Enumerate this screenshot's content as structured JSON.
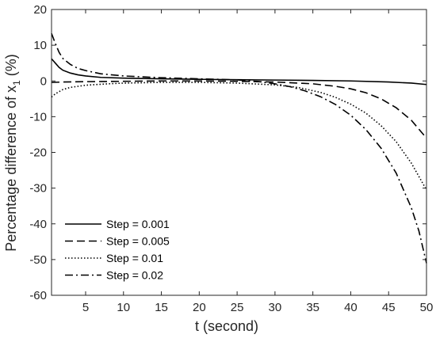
{
  "chart_data": {
    "type": "line",
    "xlabel": "t (second)",
    "ylabel": "Percentage difference of x",
    "ylabel_subscript": "1",
    "ylabel_unit": "(%)",
    "xlim": [
      0.5,
      50
    ],
    "ylim": [
      -60,
      20
    ],
    "xticks": [
      5,
      10,
      15,
      20,
      25,
      30,
      35,
      40,
      45,
      50
    ],
    "yticks": [
      20,
      10,
      0,
      -10,
      -20,
      -30,
      -40,
      -50,
      -60
    ],
    "grid": false,
    "legend_position": "bottom-left",
    "series": [
      {
        "name": "Step = 0.001",
        "dash": "solid",
        "color": "#000000",
        "points": [
          [
            0.5,
            6.2
          ],
          [
            1,
            5.0
          ],
          [
            1.5,
            3.8
          ],
          [
            2,
            3.0
          ],
          [
            3,
            2.2
          ],
          [
            4,
            1.7
          ],
          [
            5,
            1.4
          ],
          [
            7,
            1.0
          ],
          [
            10,
            0.8
          ],
          [
            15,
            0.6
          ],
          [
            20,
            0.45
          ],
          [
            25,
            0.35
          ],
          [
            30,
            0.25
          ],
          [
            35,
            0.15
          ],
          [
            40,
            0.0
          ],
          [
            45,
            -0.3
          ],
          [
            48,
            -0.6
          ],
          [
            50,
            -1.0
          ]
        ]
      },
      {
        "name": "Step = 0.005",
        "dash": "dashed",
        "color": "#000000",
        "points": [
          [
            0.5,
            -0.4
          ],
          [
            2,
            -0.3
          ],
          [
            5,
            -0.2
          ],
          [
            10,
            -0.1
          ],
          [
            15,
            0.0
          ],
          [
            20,
            0.0
          ],
          [
            25,
            -0.1
          ],
          [
            30,
            -0.3
          ],
          [
            35,
            -0.8
          ],
          [
            38,
            -1.5
          ],
          [
            40,
            -2.2
          ],
          [
            42,
            -3.3
          ],
          [
            44,
            -5.0
          ],
          [
            46,
            -7.5
          ],
          [
            48,
            -11.0
          ],
          [
            50,
            -16.0
          ]
        ]
      },
      {
        "name": "Step = 0.01",
        "dash": "dotted",
        "color": "#000000",
        "points": [
          [
            0.5,
            -4.5
          ],
          [
            1,
            -3.6
          ],
          [
            2,
            -2.4
          ],
          [
            3,
            -1.8
          ],
          [
            5,
            -1.2
          ],
          [
            8,
            -0.8
          ],
          [
            10,
            -0.6
          ],
          [
            15,
            -0.4
          ],
          [
            20,
            -0.4
          ],
          [
            25,
            -0.6
          ],
          [
            30,
            -1.1
          ],
          [
            33,
            -1.8
          ],
          [
            36,
            -3.2
          ],
          [
            38,
            -4.6
          ],
          [
            40,
            -6.5
          ],
          [
            42,
            -9.0
          ],
          [
            44,
            -12.5
          ],
          [
            46,
            -17.0
          ],
          [
            48,
            -23.0
          ],
          [
            50,
            -30.5
          ]
        ]
      },
      {
        "name": "Step = 0.02",
        "dash": "dashdot",
        "color": "#000000",
        "points": [
          [
            0.5,
            13.3
          ],
          [
            1,
            10.5
          ],
          [
            1.5,
            8.0
          ],
          [
            2,
            6.3
          ],
          [
            3,
            4.6
          ],
          [
            4,
            3.5
          ],
          [
            5,
            2.9
          ],
          [
            7,
            2.0
          ],
          [
            10,
            1.4
          ],
          [
            15,
            0.9
          ],
          [
            20,
            0.6
          ],
          [
            25,
            0.3
          ],
          [
            28,
            -0.2
          ],
          [
            30,
            -0.8
          ],
          [
            32,
            -1.6
          ],
          [
            34,
            -2.8
          ],
          [
            36,
            -4.4
          ],
          [
            38,
            -6.6
          ],
          [
            40,
            -9.6
          ],
          [
            42,
            -13.6
          ],
          [
            44,
            -18.8
          ],
          [
            46,
            -25.8
          ],
          [
            48,
            -35.5
          ],
          [
            49,
            -42.0
          ],
          [
            50,
            -51.0
          ]
        ]
      }
    ]
  }
}
